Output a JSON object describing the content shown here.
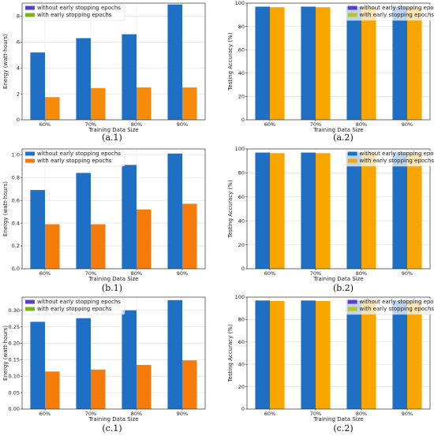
{
  "chart_data": [
    {
      "id": "a1",
      "type": "bar",
      "caption": "(a.1)",
      "categories": [
        "60%",
        "70%",
        "80%",
        "90%"
      ],
      "xlabel": "Training Data Size",
      "ylabel": "Energy (watt-hours)",
      "ylim": [
        0,
        9
      ],
      "yticks": [
        "0",
        "2",
        "4",
        "6",
        "8"
      ],
      "ytick_values": [
        0,
        2,
        4,
        6,
        8
      ],
      "grid": true,
      "legend": "top-left",
      "series": [
        {
          "name": "without early stopping epochs",
          "values": [
            5.2,
            6.3,
            6.6,
            8.9
          ],
          "color": "#1f6fc4",
          "legend_color": "#5b3fc4"
        },
        {
          "name": "with early stopping epochs",
          "values": [
            1.75,
            2.45,
            2.5,
            2.5
          ],
          "color": "#f58a0b",
          "legend_color": "#7cb518"
        }
      ]
    },
    {
      "id": "a2",
      "type": "bar",
      "caption": "(a.2)",
      "categories": [
        "60%",
        "70%",
        "80%",
        "90%"
      ],
      "xlabel": "Training Data Size",
      "ylabel": "Testing Accuracy (%)",
      "ylim": [
        0,
        100
      ],
      "yticks": [
        "0",
        "20",
        "40",
        "60",
        "80",
        "100"
      ],
      "ytick_values": [
        0,
        20,
        40,
        60,
        80,
        100
      ],
      "grid": true,
      "legend": "top-right",
      "series": [
        {
          "name": "without early stopping epochs",
          "values": [
            97,
            97,
            97,
            97
          ],
          "color": "#1f6fc4",
          "legend_color": "#5b3fc4"
        },
        {
          "name": "with early stopping epochs",
          "values": [
            96.5,
            96.5,
            96.5,
            96.5
          ],
          "color": "#f7a600",
          "legend_color": "#b8c81a"
        }
      ]
    },
    {
      "id": "b1",
      "type": "bar",
      "caption": "(b.1)",
      "categories": [
        "60%",
        "70%",
        "80%",
        "90%"
      ],
      "xlabel": "Training Data Size",
      "ylabel": "Energy (watt-hours)",
      "ylim": [
        0,
        1.05
      ],
      "yticks": [
        "0.0",
        "0.2",
        "0.4",
        "0.6",
        "0.8",
        "1.0"
      ],
      "ytick_values": [
        0,
        0.2,
        0.4,
        0.6,
        0.8,
        1.0
      ],
      "grid": true,
      "legend": "top-left",
      "series": [
        {
          "name": "without early stopping epochs",
          "values": [
            0.69,
            0.84,
            0.91,
            1.01
          ],
          "color": "#1f6fc4",
          "legend_color": "#1f6fc4"
        },
        {
          "name": "with early stopping epochs",
          "values": [
            0.39,
            0.39,
            0.52,
            0.57
          ],
          "color": "#f57c0a",
          "legend_color": "#f57c0a"
        }
      ]
    },
    {
      "id": "b2",
      "type": "bar",
      "caption": "(b.2)",
      "categories": [
        "60%",
        "70%",
        "80%",
        "90%"
      ],
      "xlabel": "Training Data Size",
      "ylabel": "Testing Accuracy (%)",
      "ylim": [
        0,
        100
      ],
      "yticks": [
        "0",
        "20",
        "40",
        "60",
        "80",
        "100"
      ],
      "ytick_values": [
        0,
        20,
        40,
        60,
        80,
        100
      ],
      "grid": true,
      "legend": "top-right",
      "series": [
        {
          "name": "without early stopping epochs",
          "values": [
            97,
            97,
            97,
            97
          ],
          "color": "#1f6fc4",
          "legend_color": "#1f6fc4"
        },
        {
          "name": "with early stopping epochs",
          "values": [
            96.5,
            96.5,
            96.5,
            96.5
          ],
          "color": "#f7a600",
          "legend_color": "#f7a600"
        }
      ]
    },
    {
      "id": "c1",
      "type": "bar",
      "caption": "(c.1)",
      "categories": [
        "60%",
        "70%",
        "80%",
        "90%"
      ],
      "xlabel": "Training Data Size",
      "ylabel": "Energy (watt-hours)",
      "ylim": [
        0,
        0.34
      ],
      "yticks": [
        "0.00",
        "0.05",
        "0.10",
        "0.15",
        "0.20",
        "0.25",
        "0.30"
      ],
      "ytick_values": [
        0,
        0.05,
        0.1,
        0.15,
        0.2,
        0.25,
        0.3
      ],
      "grid": true,
      "legend": "top-left",
      "series": [
        {
          "name": "without early stopping epochs",
          "values": [
            0.265,
            0.276,
            0.3,
            0.331
          ],
          "color": "#1f6fc4",
          "legend_color": "#5b3fc4"
        },
        {
          "name": "with early stopping epochs",
          "values": [
            0.114,
            0.12,
            0.134,
            0.148
          ],
          "color": "#f57c0a",
          "legend_color": "#7cb518"
        }
      ]
    },
    {
      "id": "c2",
      "type": "bar",
      "caption": "(c.2)",
      "categories": [
        "60%",
        "70%",
        "80%",
        "90%"
      ],
      "xlabel": "Training Data Size",
      "ylabel": "Testing Accuracy (%)",
      "ylim": [
        0,
        100
      ],
      "yticks": [
        "0",
        "20",
        "40",
        "60",
        "80",
        "100"
      ],
      "ytick_values": [
        0,
        20,
        40,
        60,
        80,
        100
      ],
      "grid": true,
      "legend": "top-right",
      "series": [
        {
          "name": "without early stopping epochs",
          "values": [
            97,
            97,
            97,
            97
          ],
          "color": "#1f6fc4",
          "legend_color": "#5b3fc4"
        },
        {
          "name": "with early stopping epochs",
          "values": [
            96.5,
            96.5,
            96.5,
            96.5
          ],
          "color": "#f7a600",
          "legend_color": "#b8c81a"
        }
      ]
    }
  ]
}
